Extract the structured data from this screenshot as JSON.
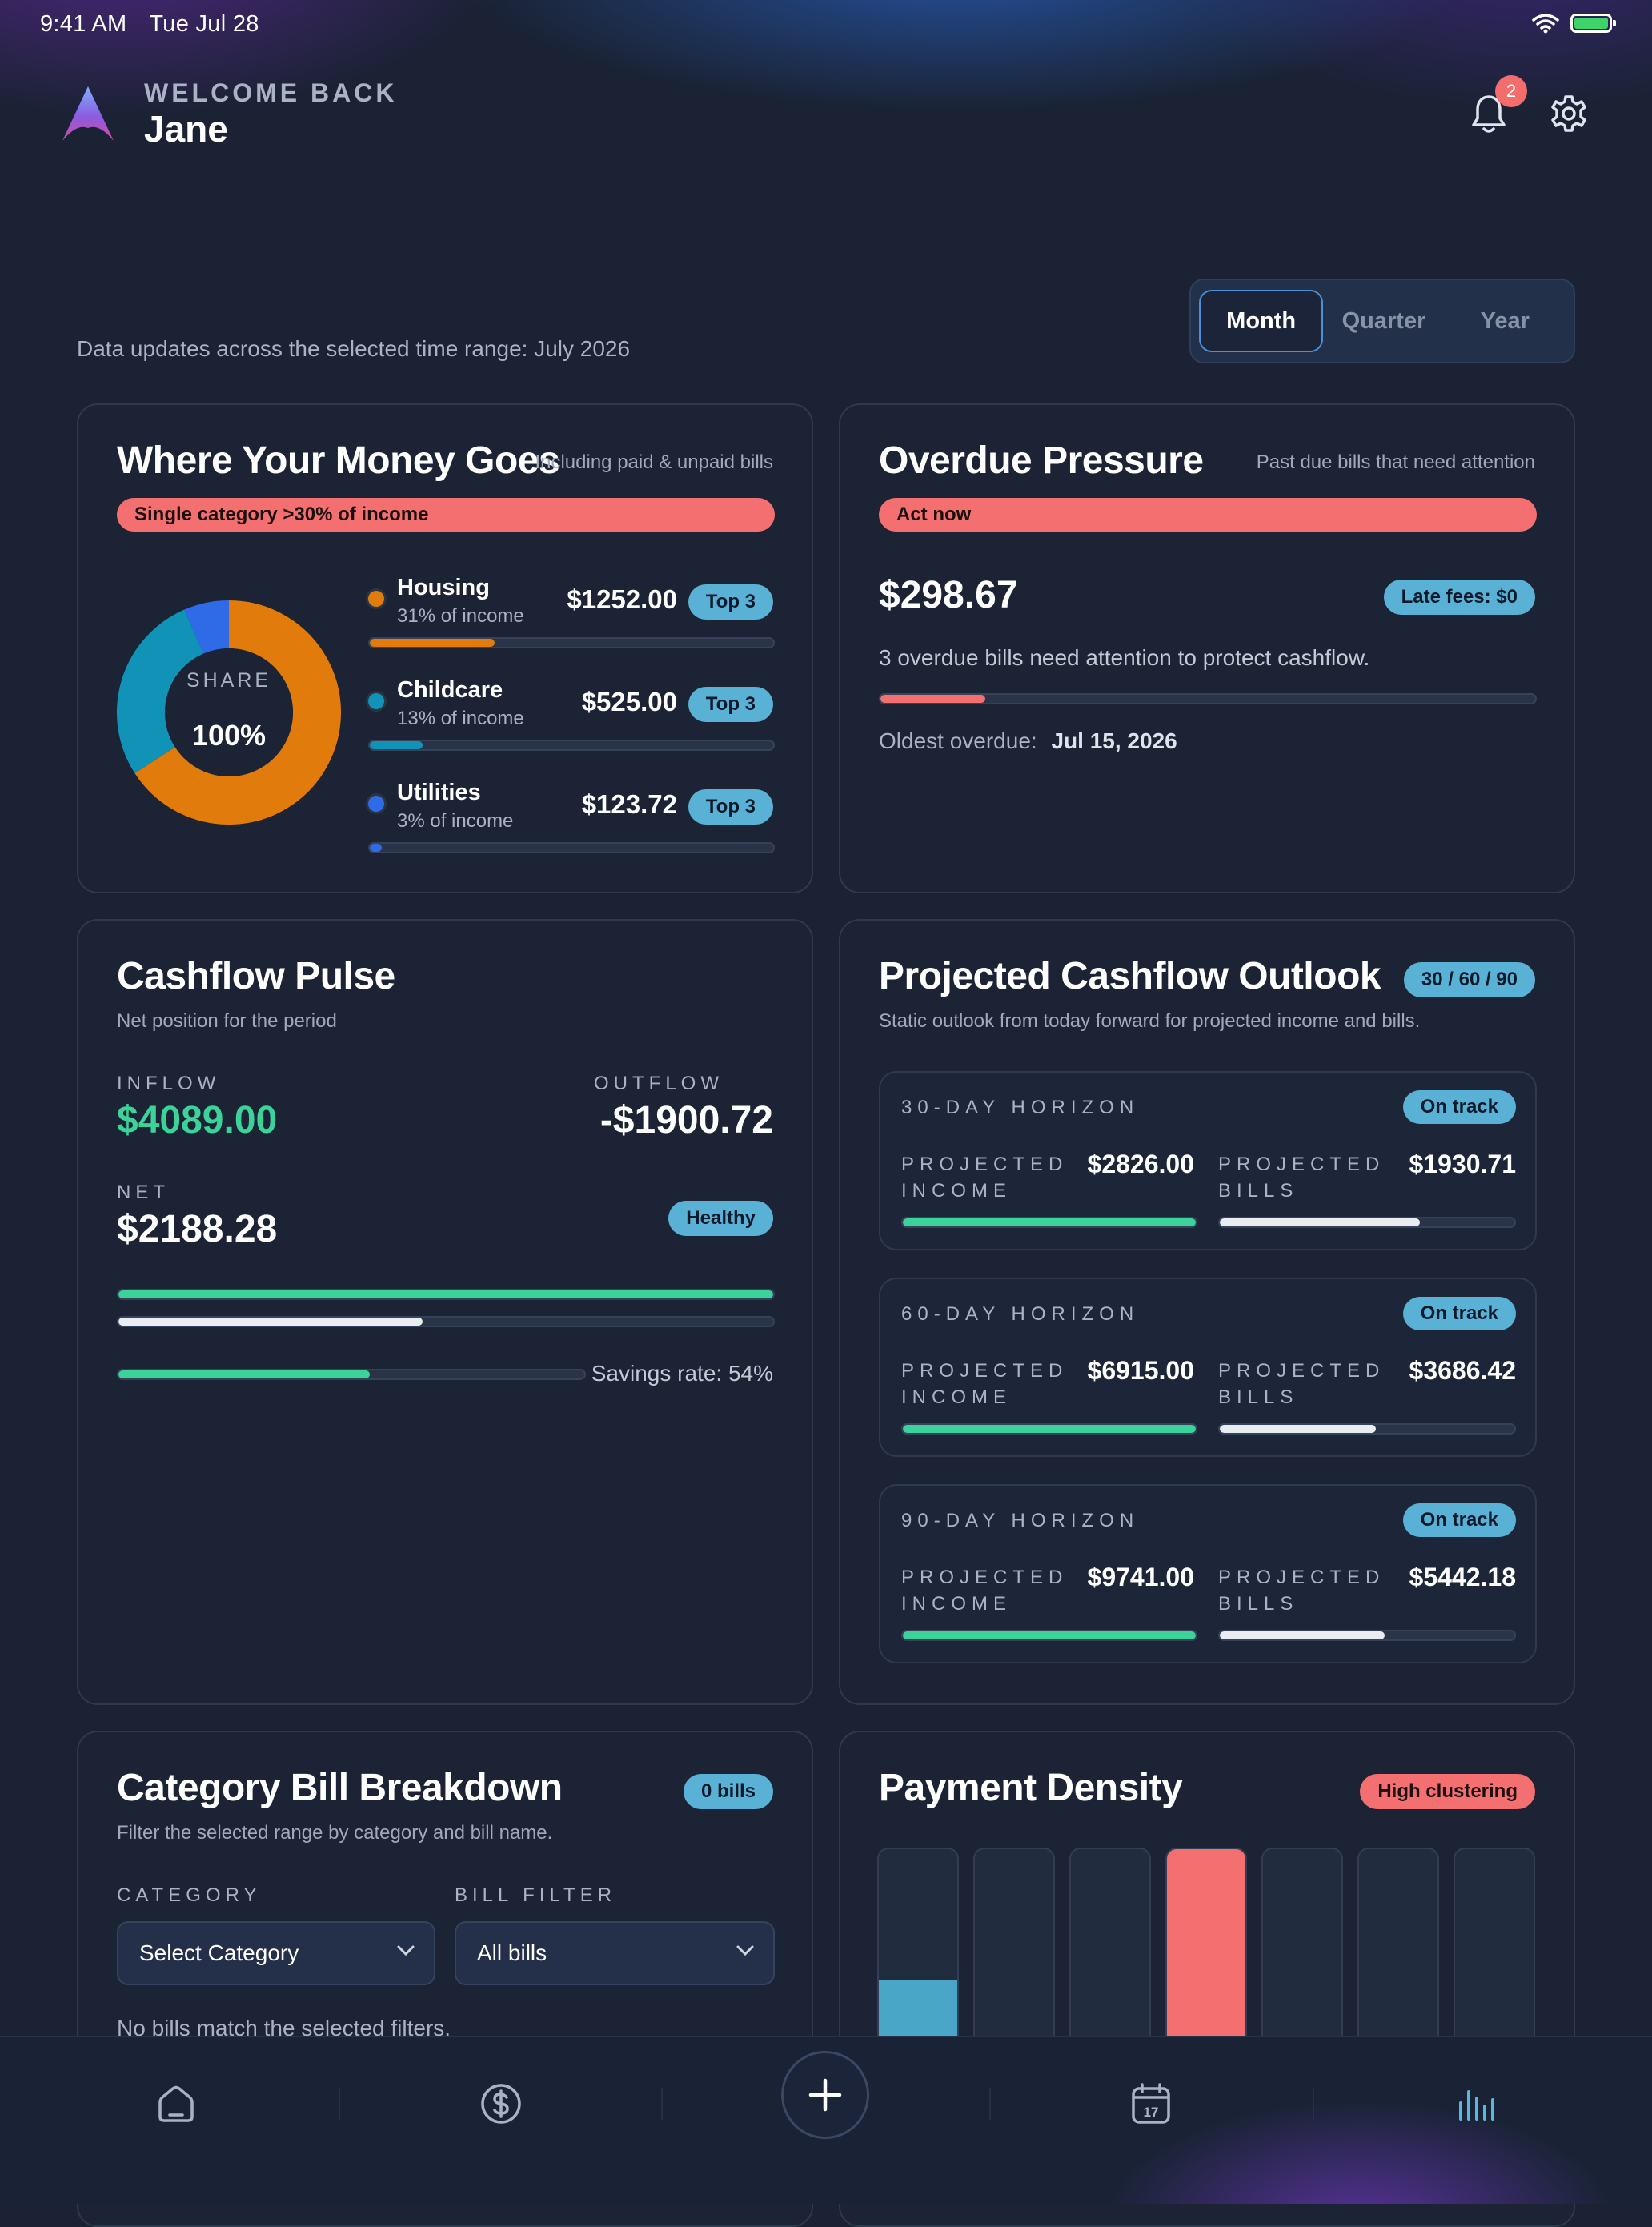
{
  "status_bar": {
    "time": "9:41 AM",
    "date": "Tue Jul 28"
  },
  "header": {
    "welcome": "WELCOME BACK",
    "name": "Jane",
    "notification_count": "2"
  },
  "range_note": "Data updates across the selected time range: July 2026",
  "time_range": {
    "options": [
      "Month",
      "Quarter",
      "Year"
    ],
    "selected": "Month"
  },
  "money_goes": {
    "title": "Where Your Money Goes",
    "subtitle": "Including paid & unpaid bills",
    "alert": "Single category >30% of income",
    "donut_label": "SHARE",
    "donut_value": "100%",
    "categories": [
      {
        "name": "Housing",
        "share": "31% of income",
        "amount": "$1252.00",
        "tag": "Top 3",
        "color": "#e07b0c",
        "fraction": 0.31
      },
      {
        "name": "Childcare",
        "share": "13% of income",
        "amount": "$525.00",
        "tag": "Top 3",
        "color": "#1193b8",
        "fraction": 0.13
      },
      {
        "name": "Utilities",
        "share": "3% of income",
        "amount": "$123.72",
        "tag": "Top 3",
        "color": "#2f6be6",
        "fraction": 0.03
      }
    ],
    "donut_segments": [
      {
        "color": "#e07b0c",
        "value": 1252.0
      },
      {
        "color": "#1193b8",
        "value": 525.0
      },
      {
        "color": "#2f6be6",
        "value": 123.72
      }
    ]
  },
  "overdue": {
    "title": "Overdue Pressure",
    "subtitle": "Past due bills that need attention",
    "alert": "Act now",
    "amount": "$298.67",
    "late_fees": "Late fees: $0",
    "message": "3 overdue bills need attention to protect cashflow.",
    "progress": 0.16,
    "oldest_label": "Oldest overdue:",
    "oldest_date": "Jul 15, 2026"
  },
  "cashflow": {
    "title": "Cashflow Pulse",
    "subtitle": "Net position for the period",
    "inflow_label": "INFLOW",
    "inflow": "$4089.00",
    "outflow_label": "OUTFLOW",
    "outflow": "-$1900.72",
    "net_label": "NET",
    "net": "$2188.28",
    "status": "Healthy",
    "inflow_fraction": 1.0,
    "outflow_fraction": 0.465,
    "savings_fraction": 0.54,
    "savings_label": "Savings rate: 54%"
  },
  "outlook": {
    "title": "Projected Cashflow Outlook",
    "badge": "30 / 60 / 90",
    "subtitle": "Static outlook from today forward for projected income and bills.",
    "income_label": "PROJECTED INCOME",
    "bills_label": "PROJECTED BILLS",
    "horizons": [
      {
        "title": "30-DAY HORIZON",
        "status": "On track",
        "income": "$2826.00",
        "bills": "$1930.71",
        "income_fraction": 1.0,
        "bills_fraction": 0.68
      },
      {
        "title": "60-DAY HORIZON",
        "status": "On track",
        "income": "$6915.00",
        "bills": "$3686.42",
        "income_fraction": 1.0,
        "bills_fraction": 0.53
      },
      {
        "title": "90-DAY HORIZON",
        "status": "On track",
        "income": "$9741.00",
        "bills": "$5442.18",
        "income_fraction": 1.0,
        "bills_fraction": 0.56
      }
    ]
  },
  "breakdown": {
    "title": "Category Bill Breakdown",
    "badge": "0 bills",
    "subtitle": "Filter the selected range by category and bill name.",
    "category_label": "CATEGORY",
    "category_value": "Select Category",
    "filter_label": "BILL FILTER",
    "filter_value": "All bills",
    "empty": "No bills match the selected filters."
  },
  "density": {
    "title": "Payment Density",
    "badge": "High clustering",
    "columns": [
      {
        "level": 0.36,
        "color": "#4aa6c6"
      },
      {
        "level": 0,
        "color": "#4aa6c6"
      },
      {
        "level": 0,
        "color": "#4aa6c6"
      },
      {
        "level": 1.0,
        "color": "#f46f6f"
      },
      {
        "level": 0,
        "color": "#4aa6c6"
      },
      {
        "level": 0,
        "color": "#4aa6c6"
      },
      {
        "level": 0,
        "color": "#4aa6c6"
      }
    ]
  },
  "nav": {
    "icons": [
      "home-icon",
      "dollar-icon",
      "add-icon",
      "calendar-icon",
      "chart-icon"
    ],
    "calendar_day": "17"
  }
}
